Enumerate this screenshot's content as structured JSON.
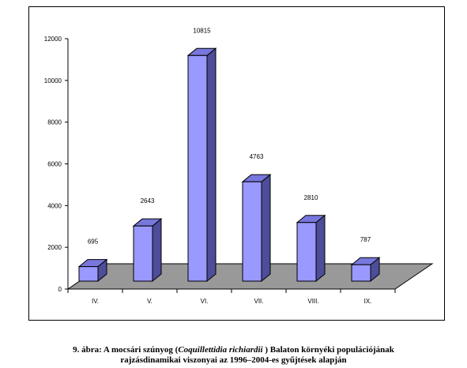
{
  "chart_data": {
    "type": "bar",
    "categories": [
      "IV.",
      "V.",
      "VI.",
      "VII.",
      "VIII.",
      "IX."
    ],
    "values": [
      695,
      2643,
      10815,
      4763,
      2810,
      787
    ],
    "data_labels": [
      "695",
      "2643",
      "10815",
      "4763",
      "2810",
      "787"
    ],
    "yticks": [
      "0",
      "2000",
      "4000",
      "6000",
      "8000",
      "10000",
      "12000"
    ],
    "ylim": [
      0,
      12000
    ],
    "bar_color": "#9999ff",
    "bar_side_color": "#4d4d99",
    "bar_top_color": "#7777dd",
    "floor_color": "#999999"
  },
  "caption": {
    "line1_before": "9. ábra: A mocsári szúnyog (",
    "line1_italic": "Coquillettidia richiardii",
    "line1_after": " ) Balaton környéki populációjának",
    "line2": "rajzásdinamikai viszonyai az 1996–2004-es gyűjtések alapján"
  }
}
